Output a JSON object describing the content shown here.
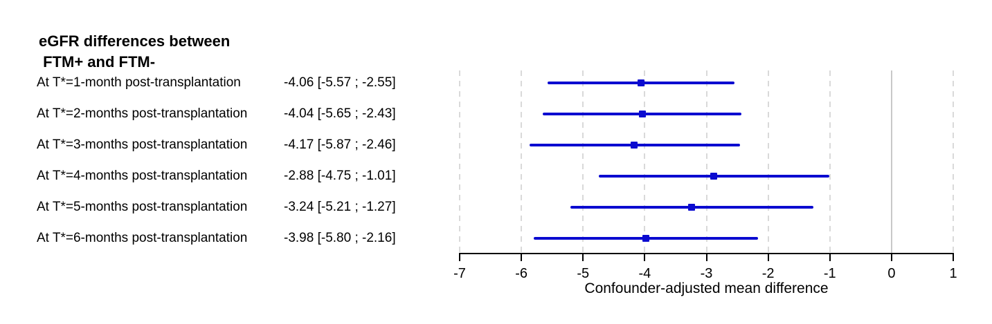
{
  "figure": {
    "title_line1": "eGFR differences between",
    "title_line2": " FTM+ and FTM-"
  },
  "rows": [
    {
      "label": "At T*=1-month post-transplantation",
      "value": "-4.06 [-5.57 ; -2.55]"
    },
    {
      "label": "At T*=2-months post-transplantation",
      "value": "-4.04 [-5.65 ; -2.43]"
    },
    {
      "label": "At T*=3-months post-transplantation",
      "value": "-4.17 [-5.87 ; -2.46]"
    },
    {
      "label": "At T*=4-months post-transplantation",
      "value": "-2.88 [-4.75 ; -1.01]"
    },
    {
      "label": "At T*=5-months post-transplantation",
      "value": "-3.24 [-5.21 ; -1.27]"
    },
    {
      "label": "At T*=6-months post-transplantation",
      "value": "-3.98 [-5.80 ; -2.16]"
    }
  ],
  "chart_data": {
    "type": "scatter",
    "subtype": "forest-plot-horizontal-ci",
    "title": "eGFR differences between FTM+ and FTM-",
    "categories": [
      "At T*=1-month post-transplantation",
      "At T*=2-months post-transplantation",
      "At T*=3-months post-transplantation",
      "At T*=4-months post-transplantation",
      "At T*=5-months post-transplantation",
      "At T*=6-months post-transplantation"
    ],
    "series": [
      {
        "name": "Confounder-adjusted mean difference (95% CI)",
        "estimates": [
          -4.06,
          -4.04,
          -4.17,
          -2.88,
          -3.24,
          -3.98
        ],
        "ci_low": [
          -5.57,
          -5.65,
          -5.87,
          -4.75,
          -5.21,
          -5.8
        ],
        "ci_high": [
          -2.55,
          -2.43,
          -2.46,
          -1.01,
          -1.27,
          -2.16
        ]
      }
    ],
    "xlabel": "Confounder-adjusted mean difference",
    "ylabel": "",
    "xlim": [
      -7,
      1
    ],
    "xticks": [
      -7,
      -6,
      -5,
      -4,
      -3,
      -2,
      -1,
      0,
      1
    ],
    "grid": "vertical dashed gridlines at every tick; solid gridline at 0",
    "legend_position": "none"
  },
  "colors": {
    "ci_blue": "#0b0bd0",
    "grid_dashed": "#d9d9d9",
    "grid_zero_solid": "#c8c8c8",
    "axis_black": "#000000",
    "text": "#000000",
    "background": "#ffffff"
  }
}
